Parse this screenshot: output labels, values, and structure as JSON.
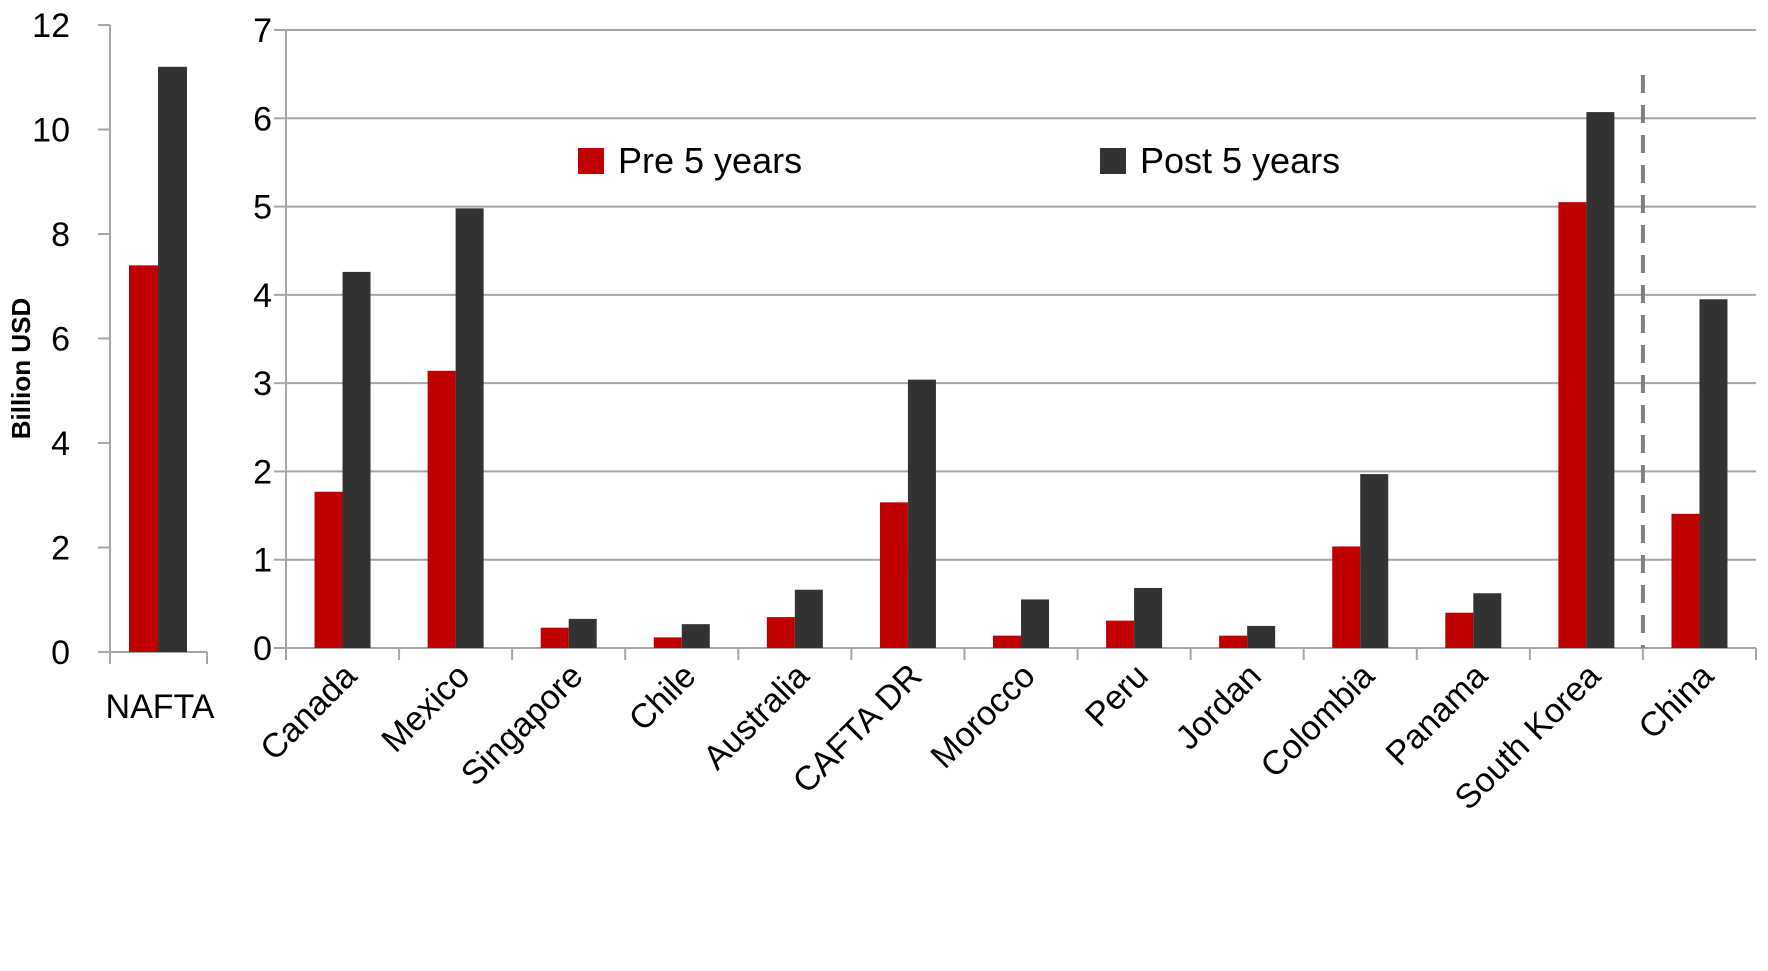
{
  "chart_data": [
    {
      "type": "bar",
      "categories": [
        "NAFTA"
      ],
      "ylabel": "Billion USD",
      "ylim": [
        0,
        12
      ],
      "yticks": [
        0,
        2,
        4,
        6,
        8,
        10,
        12
      ],
      "grid": false,
      "series": [
        {
          "name": "Pre 5 years",
          "color": "#c00000",
          "values": [
            7.4
          ]
        },
        {
          "name": "Post 5 years",
          "color": "#333333",
          "values": [
            11.2
          ]
        }
      ]
    },
    {
      "type": "bar",
      "categories": [
        "Canada",
        "Mexico",
        "Singapore",
        "Chile",
        "Australia",
        "CAFTA DR",
        "Morocco",
        "Peru",
        "Jordan",
        "Colombia",
        "Panama",
        "South Korea",
        "China"
      ],
      "ylim": [
        0,
        7
      ],
      "yticks": [
        0,
        1,
        2,
        3,
        4,
        5,
        6,
        7
      ],
      "grid": true,
      "legend": {
        "position": "top",
        "entries": [
          "Pre 5 years",
          "Post 5 years"
        ]
      },
      "separator_before": "China",
      "series": [
        {
          "name": "Pre 5 years",
          "color": "#c00000",
          "values": [
            1.77,
            3.14,
            0.23,
            0.12,
            0.35,
            1.65,
            0.14,
            0.31,
            0.14,
            1.15,
            0.4,
            5.05,
            1.52
          ]
        },
        {
          "name": "Post 5 years",
          "color": "#333333",
          "values": [
            4.26,
            4.98,
            0.33,
            0.27,
            0.66,
            3.04,
            0.55,
            0.68,
            0.25,
            1.97,
            0.62,
            6.07,
            3.95
          ]
        }
      ]
    }
  ]
}
